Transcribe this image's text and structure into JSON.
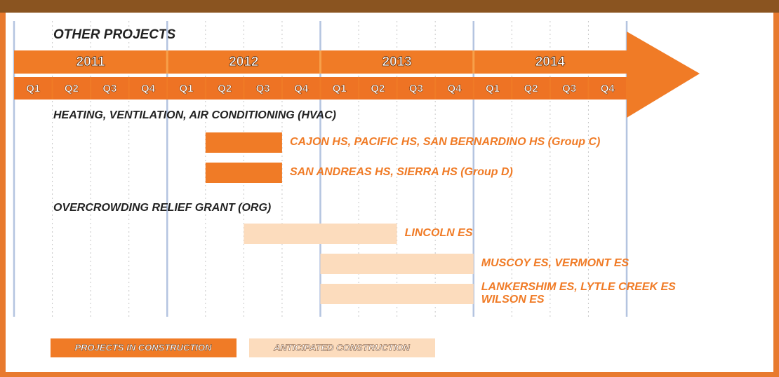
{
  "chart_data": {
    "type": "gantt",
    "title": "OTHER PROJECTS",
    "years": [
      "2011",
      "2012",
      "2013",
      "2014"
    ],
    "quarters": [
      "Q1",
      "Q2",
      "Q3",
      "Q4",
      "Q1",
      "Q2",
      "Q3",
      "Q4",
      "Q1",
      "Q2",
      "Q3",
      "Q4",
      "Q1",
      "Q2",
      "Q3",
      "Q4"
    ],
    "xlim": [
      0,
      16
    ],
    "groups": [
      {
        "name": "HEATING, VENTILATION, AIR CONDITIONING (HVAC)",
        "tasks": [
          {
            "name": [
              "CAJON HS, PACIFIC HS, SAN BERNARDINO HS (Group C)"
            ],
            "start": 5,
            "end": 7,
            "color": "#f07b26"
          },
          {
            "name": [
              "SAN ANDREAS HS, SIERRA HS (Group D)"
            ],
            "start": 5,
            "end": 7,
            "color": "#f07b26"
          }
        ]
      },
      {
        "name": "OVERCROWDING RELIEF GRANT (ORG)",
        "tasks": [
          {
            "name": [
              "LINCOLN ES"
            ],
            "start": 6,
            "end": 10,
            "color": "#fcdcbd"
          },
          {
            "name": [
              "MUSCOY ES, VERMONT ES"
            ],
            "start": 8,
            "end": 12,
            "color": "#fcdcbd"
          },
          {
            "name": [
              "LANKERSHIM ES, LYTLE CREEK ES",
              "WILSON ES"
            ],
            "start": 8,
            "end": 12,
            "color": "#fcdcbd"
          }
        ]
      }
    ],
    "legend": [
      {
        "name": "PROJECTS IN CONSTRUCTION",
        "color": "#f07b26"
      },
      {
        "name": "ANTICIPATED CONSTRUCTION",
        "color": "#fcdcbd"
      }
    ]
  }
}
